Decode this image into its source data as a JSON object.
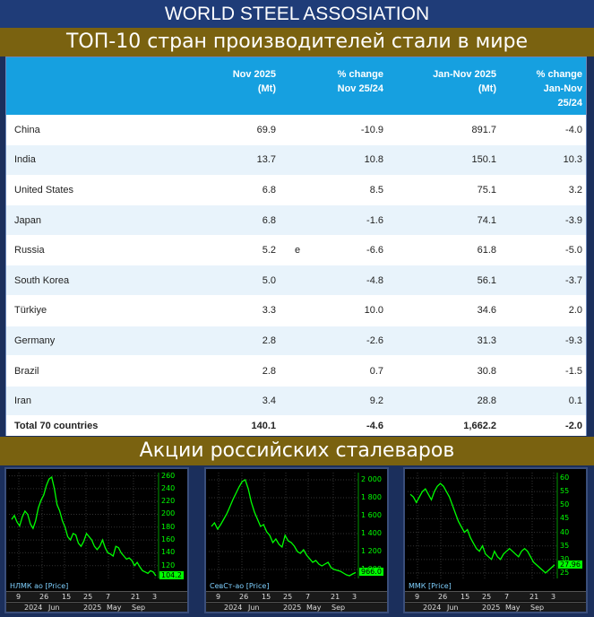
{
  "banner_top": "WORLD STEEL ASSOSIATION",
  "banner_table": "ТОП-10 стран производителей стали в мире",
  "banner_shares": "Акции российских сталеваров",
  "table": {
    "headers": [
      "",
      "Nov 2025\n(Mt)",
      "",
      "% change\nNov 25/24",
      "Jan-Nov 2025\n(Mt)",
      "% change\nJan-Nov\n25/24"
    ],
    "rows": [
      {
        "country": "China",
        "nov": "69.9",
        "flag": "",
        "chg": "-10.9",
        "ytd": "891.7",
        "ytd_chg": "-4.0"
      },
      {
        "country": "India",
        "nov": "13.7",
        "flag": "",
        "chg": "10.8",
        "ytd": "150.1",
        "ytd_chg": "10.3"
      },
      {
        "country": "United States",
        "nov": "6.8",
        "flag": "",
        "chg": "8.5",
        "ytd": "75.1",
        "ytd_chg": "3.2"
      },
      {
        "country": "Japan",
        "nov": "6.8",
        "flag": "",
        "chg": "-1.6",
        "ytd": "74.1",
        "ytd_chg": "-3.9"
      },
      {
        "country": "Russia",
        "nov": "5.2",
        "flag": "e",
        "chg": "-6.6",
        "ytd": "61.8",
        "ytd_chg": "-5.0"
      },
      {
        "country": "South Korea",
        "nov": "5.0",
        "flag": "",
        "chg": "-4.8",
        "ytd": "56.1",
        "ytd_chg": "-3.7"
      },
      {
        "country": "Türkiye",
        "nov": "3.3",
        "flag": "",
        "chg": "10.0",
        "ytd": "34.6",
        "ytd_chg": "2.0"
      },
      {
        "country": "Germany",
        "nov": "2.8",
        "flag": "",
        "chg": "-2.6",
        "ytd": "31.3",
        "ytd_chg": "-9.3"
      },
      {
        "country": "Brazil",
        "nov": "2.8",
        "flag": "",
        "chg": "0.7",
        "ytd": "30.8",
        "ytd_chg": "-1.5"
      },
      {
        "country": "Iran",
        "nov": "3.4",
        "flag": "",
        "chg": "9.2",
        "ytd": "28.8",
        "ytd_chg": "0.1"
      }
    ],
    "total": {
      "country": "Total 70 countries",
      "nov": "140.1",
      "chg": "-4.6",
      "ytd": "1,662.2",
      "ytd_chg": "-2.0"
    }
  },
  "charts": [
    {
      "title": "НЛМК ао [Price]",
      "last": "104.2",
      "yticks": [
        "260",
        "240",
        "220",
        "200",
        "180",
        "160",
        "140",
        "120"
      ],
      "ylim": [
        100,
        265
      ],
      "xticks_top": [
        "9",
        "26",
        "15",
        "25",
        "7",
        "21",
        "3"
      ],
      "xticks_bottom": [
        "2024",
        "Jun",
        "2025",
        "May",
        "Sep"
      ],
      "values": [
        192,
        198,
        188,
        182,
        196,
        205,
        200,
        185,
        178,
        190,
        210,
        222,
        230,
        245,
        255,
        258,
        240,
        215,
        205,
        190,
        180,
        165,
        160,
        170,
        168,
        155,
        150,
        158,
        170,
        165,
        160,
        150,
        145,
        150,
        160,
        148,
        140,
        138,
        135,
        150,
        148,
        140,
        135,
        130,
        132,
        128,
        120,
        125,
        118,
        112,
        110,
        108,
        112,
        110,
        104
      ]
    },
    {
      "title": "СевСт-ао [Price]",
      "last": "966.0",
      "yticks": [
        "2 000",
        "1 800",
        "1 600",
        "1 400",
        "1 200",
        "1 000"
      ],
      "ylim": [
        900,
        2080
      ],
      "xticks_top": [
        "9",
        "26",
        "15",
        "25",
        "7",
        "21",
        "3"
      ],
      "xticks_bottom": [
        "2024",
        "Jun",
        "2025",
        "May",
        "Sep"
      ],
      "values": [
        1480,
        1520,
        1450,
        1500,
        1560,
        1620,
        1700,
        1780,
        1850,
        1920,
        1980,
        2000,
        1900,
        1750,
        1640,
        1560,
        1480,
        1500,
        1420,
        1380,
        1300,
        1340,
        1280,
        1250,
        1380,
        1320,
        1300,
        1260,
        1200,
        1180,
        1220,
        1160,
        1120,
        1080,
        1100,
        1060,
        1040,
        1060,
        1080,
        1020,
        1000,
        990,
        980,
        960,
        940,
        930,
        950,
        966
      ]
    },
    {
      "title": "ММК [Price]",
      "last": "27.96",
      "yticks": [
        "60",
        "55",
        "50",
        "45",
        "40",
        "35",
        "30",
        "25"
      ],
      "ylim": [
        23,
        62
      ],
      "xticks_top": [
        "9",
        "26",
        "15",
        "25",
        "7",
        "21",
        "3"
      ],
      "xticks_bottom": [
        "2024",
        "Jun",
        "2025",
        "May",
        "Sep"
      ],
      "values": [
        54,
        53,
        51,
        53,
        55,
        56,
        54,
        52,
        55,
        57,
        58,
        57,
        55,
        53,
        50,
        47,
        44,
        42,
        40,
        41,
        38,
        36,
        34,
        33,
        35,
        32,
        31,
        30,
        33,
        31,
        30,
        32,
        33,
        34,
        33,
        32,
        31,
        33,
        34,
        33,
        31,
        29,
        28,
        27,
        26,
        25,
        26,
        27,
        28
      ]
    }
  ],
  "colors": {
    "line": "#00ff00",
    "header": "#16a0e0",
    "banner_gold": "#7a6210",
    "banner_blue": "#1f3c78"
  }
}
